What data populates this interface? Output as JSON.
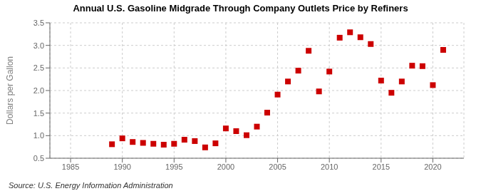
{
  "chart_data": {
    "type": "scatter",
    "title": "Annual U.S. Gasoline Midgrade Through Company Outlets Price by Refiners",
    "y_label": "Dollars per Gallon",
    "annotations": [
      "Source: U.S. Energy Information Administration"
    ],
    "x": [
      1989,
      1990,
      1991,
      1992,
      1993,
      1994,
      1995,
      1996,
      1997,
      1998,
      1999,
      2000,
      2001,
      2002,
      2003,
      2004,
      2005,
      2006,
      2007,
      2008,
      2009,
      2010,
      2011,
      2012,
      2013,
      2014,
      2015,
      2016,
      2017,
      2018,
      2019,
      2020,
      2021
    ],
    "values": [
      0.81,
      0.94,
      0.86,
      0.84,
      0.82,
      0.8,
      0.82,
      0.91,
      0.88,
      0.74,
      0.83,
      1.16,
      1.1,
      1.01,
      1.2,
      1.51,
      1.91,
      2.2,
      2.44,
      2.88,
      1.98,
      2.42,
      3.17,
      3.29,
      3.18,
      3.03,
      2.22,
      1.95,
      2.2,
      2.55,
      2.54,
      2.12,
      2.9
    ],
    "color": "#cc0000",
    "marker": "square",
    "xlim": [
      1983,
      2023
    ],
    "ylim": [
      0.5,
      3.5
    ],
    "xticks": [
      1985,
      1990,
      1995,
      2000,
      2005,
      2010,
      2015,
      2020
    ],
    "yticks": [
      0.5,
      {
        "value": 1.0,
        "label": "1.0"
      },
      1.5,
      {
        "value": 2.0,
        "label": "2.0"
      },
      2.5,
      {
        "value": 3.0,
        "label": "3.0"
      },
      3.5
    ],
    "grid": true
  }
}
